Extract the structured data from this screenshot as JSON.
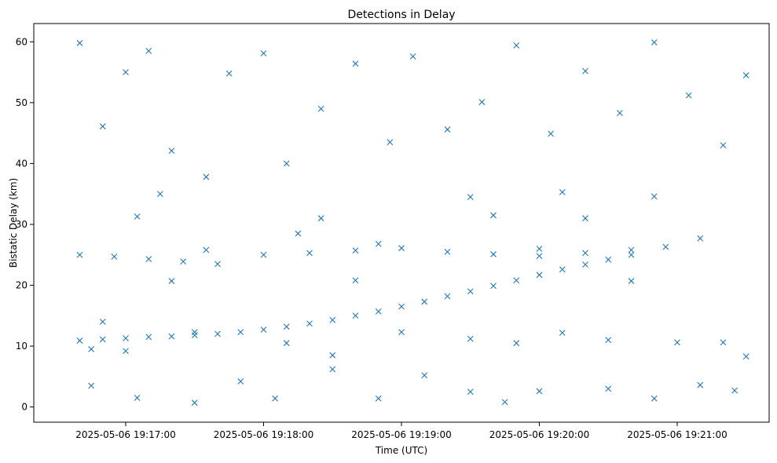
{
  "chart_data": {
    "type": "scatter",
    "title": "Detections in Delay",
    "xlabel": "Time (UTC)",
    "ylabel": "Bistatic Delay (km)",
    "x_is_time": true,
    "xlim": [
      "2025-05-06 19:16:20",
      "2025-05-06 19:21:40"
    ],
    "ylim": [
      -2.5,
      63
    ],
    "x_ticks": [
      "2025-05-06 19:17:00",
      "2025-05-06 19:18:00",
      "2025-05-06 19:19:00",
      "2025-05-06 19:20:00",
      "2025-05-06 19:21:00"
    ],
    "y_ticks": [
      0,
      10,
      20,
      30,
      40,
      50,
      60
    ],
    "marker": "x",
    "color": "#1f77b4",
    "grid": false,
    "legend": "none",
    "series": [
      {
        "points": [
          [
            "2025-05-06 19:16:40",
            10.9
          ],
          [
            "2025-05-06 19:16:50",
            11.1
          ],
          [
            "2025-05-06 19:17:00",
            11.3
          ],
          [
            "2025-05-06 19:17:10",
            11.5
          ],
          [
            "2025-05-06 19:17:20",
            11.6
          ],
          [
            "2025-05-06 19:17:30",
            11.8
          ],
          [
            "2025-05-06 19:17:40",
            12.0
          ],
          [
            "2025-05-06 19:17:50",
            12.3
          ],
          [
            "2025-05-06 19:18:00",
            12.7
          ],
          [
            "2025-05-06 19:18:10",
            13.2
          ],
          [
            "2025-05-06 19:18:20",
            13.7
          ],
          [
            "2025-05-06 19:18:30",
            14.3
          ],
          [
            "2025-05-06 19:18:40",
            15.0
          ],
          [
            "2025-05-06 19:18:50",
            15.7
          ],
          [
            "2025-05-06 19:19:00",
            16.5
          ],
          [
            "2025-05-06 19:19:10",
            17.3
          ],
          [
            "2025-05-06 19:19:20",
            18.2
          ],
          [
            "2025-05-06 19:19:30",
            19.0
          ],
          [
            "2025-05-06 19:19:40",
            19.9
          ],
          [
            "2025-05-06 19:19:50",
            20.8
          ],
          [
            "2025-05-06 19:20:00",
            21.7
          ],
          [
            "2025-05-06 19:20:10",
            22.6
          ],
          [
            "2025-05-06 19:20:20",
            23.4
          ],
          [
            "2025-05-06 19:20:30",
            24.2
          ],
          [
            "2025-05-06 19:20:40",
            25.0
          ],
          [
            "2025-05-06 19:16:40",
            25.0
          ],
          [
            "2025-05-06 19:16:55",
            24.7
          ],
          [
            "2025-05-06 19:17:10",
            24.3
          ],
          [
            "2025-05-06 19:17:25",
            23.9
          ],
          [
            "2025-05-06 19:17:40",
            23.5
          ],
          [
            "2025-05-06 19:18:00",
            25.0
          ],
          [
            "2025-05-06 19:18:20",
            25.3
          ],
          [
            "2025-05-06 19:18:40",
            25.7
          ],
          [
            "2025-05-06 19:19:00",
            26.1
          ],
          [
            "2025-05-06 19:19:20",
            25.5
          ],
          [
            "2025-05-06 19:19:40",
            25.1
          ],
          [
            "2025-05-06 19:20:00",
            24.8
          ],
          [
            "2025-05-06 19:20:20",
            25.3
          ],
          [
            "2025-05-06 19:20:40",
            25.8
          ],
          [
            "2025-05-06 19:20:55",
            26.3
          ],
          [
            "2025-05-06 19:16:50",
            14.0
          ],
          [
            "2025-05-06 19:16:45",
            9.5
          ],
          [
            "2025-05-06 19:17:00",
            9.2
          ],
          [
            "2025-05-06 19:17:30",
            12.3
          ],
          [
            "2025-05-06 19:18:10",
            10.5
          ],
          [
            "2025-05-06 19:18:30",
            8.5
          ],
          [
            "2025-05-06 19:19:00",
            12.3
          ],
          [
            "2025-05-06 19:19:30",
            11.2
          ],
          [
            "2025-05-06 19:19:50",
            10.5
          ],
          [
            "2025-05-06 19:20:10",
            12.2
          ],
          [
            "2025-05-06 19:20:30",
            11.0
          ],
          [
            "2025-05-06 19:21:00",
            10.6
          ],
          [
            "2025-05-06 19:21:20",
            10.6
          ],
          [
            "2025-05-06 19:21:30",
            8.3
          ],
          [
            "2025-05-06 19:17:05",
            31.3
          ],
          [
            "2025-05-06 19:17:15",
            35.0
          ],
          [
            "2025-05-06 19:17:20",
            20.7
          ],
          [
            "2025-05-06 19:17:35",
            25.8
          ],
          [
            "2025-05-06 19:18:15",
            28.5
          ],
          [
            "2025-05-06 19:18:25",
            31.0
          ],
          [
            "2025-05-06 19:18:40",
            20.8
          ],
          [
            "2025-05-06 19:18:50",
            26.8
          ],
          [
            "2025-05-06 19:19:30",
            34.5
          ],
          [
            "2025-05-06 19:19:40",
            31.5
          ],
          [
            "2025-05-06 19:20:00",
            26.0
          ],
          [
            "2025-05-06 19:20:10",
            35.3
          ],
          [
            "2025-05-06 19:20:20",
            31.0
          ],
          [
            "2025-05-06 19:20:40",
            20.7
          ],
          [
            "2025-05-06 19:20:50",
            34.6
          ],
          [
            "2025-05-06 19:21:10",
            27.7
          ],
          [
            "2025-05-06 19:16:40",
            59.8
          ],
          [
            "2025-05-06 19:16:50",
            46.1
          ],
          [
            "2025-05-06 19:17:00",
            55.0
          ],
          [
            "2025-05-06 19:17:10",
            58.5
          ],
          [
            "2025-05-06 19:17:20",
            42.1
          ],
          [
            "2025-05-06 19:17:35",
            37.8
          ],
          [
            "2025-05-06 19:17:45",
            54.8
          ],
          [
            "2025-05-06 19:18:00",
            58.1
          ],
          [
            "2025-05-06 19:18:10",
            40.0
          ],
          [
            "2025-05-06 19:18:25",
            49.0
          ],
          [
            "2025-05-06 19:18:40",
            56.4
          ],
          [
            "2025-05-06 19:18:55",
            43.5
          ],
          [
            "2025-05-06 19:19:05",
            57.6
          ],
          [
            "2025-05-06 19:19:20",
            45.6
          ],
          [
            "2025-05-06 19:19:35",
            50.1
          ],
          [
            "2025-05-06 19:19:50",
            59.4
          ],
          [
            "2025-05-06 19:20:05",
            44.9
          ],
          [
            "2025-05-06 19:20:20",
            55.2
          ],
          [
            "2025-05-06 19:20:35",
            48.3
          ],
          [
            "2025-05-06 19:20:50",
            59.9
          ],
          [
            "2025-05-06 19:21:05",
            51.2
          ],
          [
            "2025-05-06 19:21:20",
            43.0
          ],
          [
            "2025-05-06 19:21:30",
            54.5
          ],
          [
            "2025-05-06 19:16:45",
            3.5
          ],
          [
            "2025-05-06 19:17:05",
            1.5
          ],
          [
            "2025-05-06 19:17:30",
            0.7
          ],
          [
            "2025-05-06 19:17:50",
            4.2
          ],
          [
            "2025-05-06 19:18:05",
            1.4
          ],
          [
            "2025-05-06 19:18:30",
            6.2
          ],
          [
            "2025-05-06 19:18:50",
            1.4
          ],
          [
            "2025-05-06 19:19:10",
            5.2
          ],
          [
            "2025-05-06 19:19:30",
            2.5
          ],
          [
            "2025-05-06 19:19:45",
            0.8
          ],
          [
            "2025-05-06 19:20:00",
            2.6
          ],
          [
            "2025-05-06 19:20:30",
            3.0
          ],
          [
            "2025-05-06 19:20:50",
            1.4
          ],
          [
            "2025-05-06 19:21:10",
            3.6
          ],
          [
            "2025-05-06 19:21:25",
            2.7
          ]
        ]
      }
    ]
  }
}
